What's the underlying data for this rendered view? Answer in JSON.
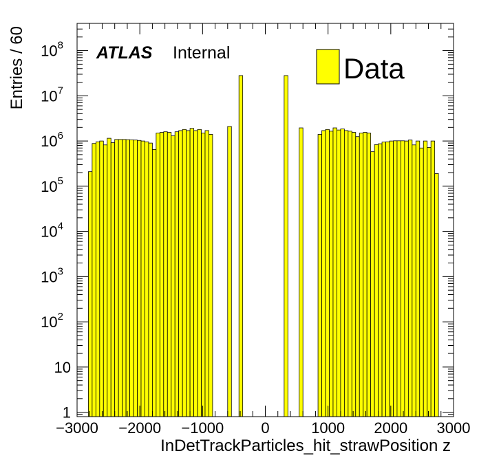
{
  "chart_data": {
    "type": "bar",
    "title": "",
    "xlabel": "InDetTrackParticles_hit_strawPosition z",
    "ylabel": "Entries / 60",
    "xlim": [
      -3000,
      3000
    ],
    "ylim": [
      0.8,
      400000000
    ],
    "log_y": true,
    "bin_width": 60,
    "fill_color": "#ffff00",
    "edge_color": "#000000",
    "x_ticks": [
      {
        "value": -3000,
        "label": "−3000"
      },
      {
        "value": -2000,
        "label": "−2000"
      },
      {
        "value": -1000,
        "label": "−1000"
      },
      {
        "value": 0,
        "label": "0"
      },
      {
        "value": 1000,
        "label": "1000"
      },
      {
        "value": 2000,
        "label": "2000"
      },
      {
        "value": 3000,
        "label": "3000"
      }
    ],
    "y_ticks": [
      {
        "value": 1,
        "base": "1",
        "exp": ""
      },
      {
        "value": 10,
        "base": "10",
        "exp": ""
      },
      {
        "value": 100,
        "base": "10",
        "exp": "2"
      },
      {
        "value": 1000,
        "base": "10",
        "exp": "3"
      },
      {
        "value": 10000,
        "base": "10",
        "exp": "4"
      },
      {
        "value": 100000,
        "base": "10",
        "exp": "5"
      },
      {
        "value": 1000000,
        "base": "10",
        "exp": "6"
      },
      {
        "value": 10000000,
        "base": "10",
        "exp": "7"
      },
      {
        "value": 100000000,
        "base": "10",
        "exp": "8"
      }
    ],
    "series": [
      {
        "name": "Data",
        "bins": [
          {
            "x": -2790,
            "y": 210000
          },
          {
            "x": -2730,
            "y": 880000
          },
          {
            "x": -2670,
            "y": 960000
          },
          {
            "x": -2610,
            "y": 1000000
          },
          {
            "x": -2550,
            "y": 820000
          },
          {
            "x": -2490,
            "y": 1150000
          },
          {
            "x": -2430,
            "y": 920000
          },
          {
            "x": -2370,
            "y": 1080000
          },
          {
            "x": -2310,
            "y": 1080000
          },
          {
            "x": -2250,
            "y": 1080000
          },
          {
            "x": -2190,
            "y": 1070000
          },
          {
            "x": -2130,
            "y": 1060000
          },
          {
            "x": -2070,
            "y": 1050000
          },
          {
            "x": -2010,
            "y": 1030000
          },
          {
            "x": -1950,
            "y": 1000000
          },
          {
            "x": -1890,
            "y": 960000
          },
          {
            "x": -1830,
            "y": 900000
          },
          {
            "x": -1770,
            "y": 650000
          },
          {
            "x": -1710,
            "y": 1500000
          },
          {
            "x": -1650,
            "y": 1550000
          },
          {
            "x": -1590,
            "y": 1600000
          },
          {
            "x": -1530,
            "y": 1550000
          },
          {
            "x": -1470,
            "y": 1300000
          },
          {
            "x": -1410,
            "y": 1600000
          },
          {
            "x": -1350,
            "y": 1700000
          },
          {
            "x": -1290,
            "y": 1800000
          },
          {
            "x": -1230,
            "y": 1700000
          },
          {
            "x": -1170,
            "y": 1900000
          },
          {
            "x": -1110,
            "y": 1700000
          },
          {
            "x": -1050,
            "y": 1800000
          },
          {
            "x": -990,
            "y": 1500000
          },
          {
            "x": -930,
            "y": 1700000
          },
          {
            "x": -870,
            "y": 1400000
          },
          {
            "x": -570,
            "y": 2100000
          },
          {
            "x": -390,
            "y": 28000000
          },
          {
            "x": 330,
            "y": 28000000
          },
          {
            "x": 570,
            "y": 1950000
          },
          {
            "x": 870,
            "y": 1400000
          },
          {
            "x": 930,
            "y": 1700000
          },
          {
            "x": 990,
            "y": 1800000
          },
          {
            "x": 1050,
            "y": 1650000
          },
          {
            "x": 1110,
            "y": 1950000
          },
          {
            "x": 1170,
            "y": 1750000
          },
          {
            "x": 1230,
            "y": 1850000
          },
          {
            "x": 1290,
            "y": 1700000
          },
          {
            "x": 1350,
            "y": 1650000
          },
          {
            "x": 1410,
            "y": 1550000
          },
          {
            "x": 1470,
            "y": 1250000
          },
          {
            "x": 1530,
            "y": 1500000
          },
          {
            "x": 1590,
            "y": 1550000
          },
          {
            "x": 1650,
            "y": 1500000
          },
          {
            "x": 1710,
            "y": 580000
          },
          {
            "x": 1770,
            "y": 830000
          },
          {
            "x": 1830,
            "y": 870000
          },
          {
            "x": 1890,
            "y": 950000
          },
          {
            "x": 1950,
            "y": 960000
          },
          {
            "x": 2010,
            "y": 1000000
          },
          {
            "x": 2070,
            "y": 1010000
          },
          {
            "x": 2130,
            "y": 1010000
          },
          {
            "x": 2190,
            "y": 1010000
          },
          {
            "x": 2250,
            "y": 1000000
          },
          {
            "x": 2310,
            "y": 1050000
          },
          {
            "x": 2370,
            "y": 820000
          },
          {
            "x": 2430,
            "y": 1000000
          },
          {
            "x": 2490,
            "y": 700000
          },
          {
            "x": 2550,
            "y": 1000000
          },
          {
            "x": 2610,
            "y": 720000
          },
          {
            "x": 2670,
            "y": 1000000
          },
          {
            "x": 2730,
            "y": 190000
          }
        ]
      }
    ]
  },
  "annotation": {
    "experiment": "ATLAS",
    "status": "Internal"
  },
  "legend": {
    "label": "Data",
    "swatch_color": "#ffff00",
    "placement": "top-right"
  }
}
